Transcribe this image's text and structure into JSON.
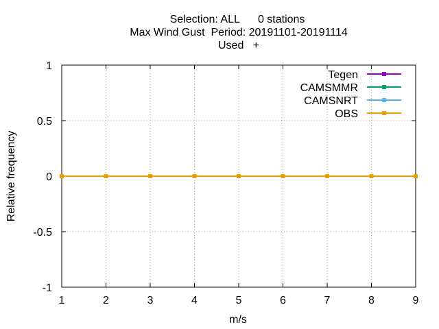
{
  "chart_data": {
    "type": "line",
    "title_lines": [
      "Selection: ALL      0 stations",
      "Max Wind Gust  Period: 20191101-20191114",
      "Used   +"
    ],
    "xlabel": "m/s",
    "ylabel": "Relative frequency",
    "xlim": [
      1,
      9
    ],
    "ylim": [
      -1,
      1
    ],
    "x_ticks": [
      "1",
      "2",
      "3",
      "4",
      "5",
      "6",
      "7",
      "8",
      "9"
    ],
    "y_ticks": [
      "1",
      "0.5",
      "0",
      "-0.5",
      "-1"
    ],
    "grid": true,
    "legend_position": "top-right",
    "x": [
      1,
      2,
      3,
      4,
      5,
      6,
      7,
      8,
      9
    ],
    "series": [
      {
        "name": "Tegen",
        "color": "#9400d3",
        "values": [
          0,
          0,
          0,
          0,
          0,
          0,
          0,
          0,
          0
        ]
      },
      {
        "name": "CAMSMMR",
        "color": "#009e73",
        "values": [
          0,
          0,
          0,
          0,
          0,
          0,
          0,
          0,
          0
        ]
      },
      {
        "name": "CAMSNRT",
        "color": "#56b4e9",
        "values": [
          0,
          0,
          0,
          0,
          0,
          0,
          0,
          0,
          0
        ]
      },
      {
        "name": "OBS",
        "color": "#e69f00",
        "values": [
          0,
          0,
          0,
          0,
          0,
          0,
          0,
          0,
          0
        ]
      }
    ]
  }
}
